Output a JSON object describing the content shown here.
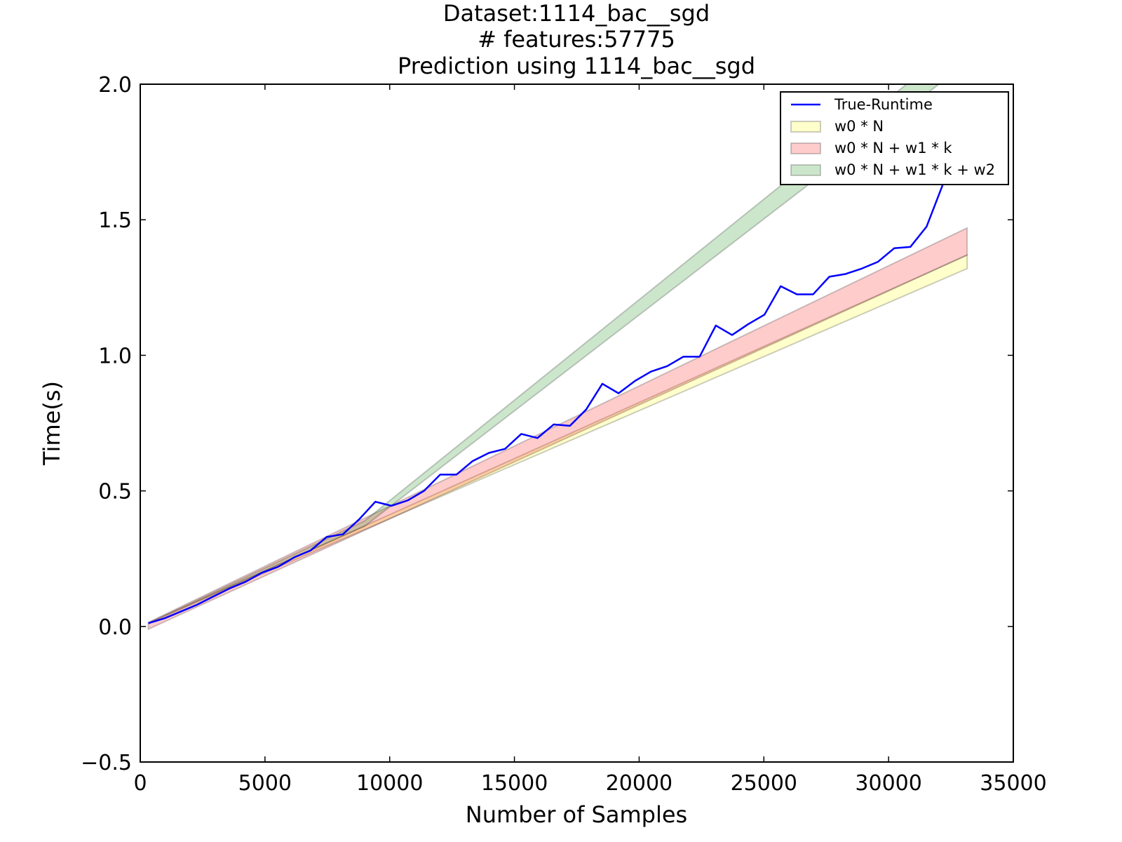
{
  "chart_data": {
    "type": "line",
    "title": [
      "Dataset:1114_bac__sgd",
      "# features:57775",
      "Prediction using 1114_bac__sgd"
    ],
    "xlabel": "Number of Samples",
    "ylabel": "Time(s)",
    "xlim": [
      0,
      35000
    ],
    "ylim": [
      -0.5,
      2.0
    ],
    "xticks": [
      0,
      5000,
      10000,
      15000,
      20000,
      25000,
      30000,
      35000
    ],
    "xtick_labels": [
      "0",
      "5000",
      "10000",
      "15000",
      "20000",
      "25000",
      "30000",
      "35000"
    ],
    "yticks": [
      -0.5,
      0.0,
      0.5,
      1.0,
      1.5,
      2.0
    ],
    "ytick_labels": [
      "−0.5",
      "0.0",
      "0.5",
      "1.0",
      "1.5",
      "2.0"
    ],
    "grid": false,
    "legend_position": "top-right",
    "series": [
      {
        "name": "True-Runtime",
        "kind": "line",
        "color": "#0000ff",
        "x": [
          325,
          975,
          1625,
          2275,
          2925,
          3575,
          4225,
          4875,
          5525,
          6175,
          6825,
          7475,
          8125,
          8775,
          9425,
          10075,
          10725,
          11375,
          12025,
          12675,
          13325,
          13975,
          14625,
          15275,
          15925,
          16575,
          17225,
          17875,
          18525,
          19175,
          19825,
          20475,
          21125,
          21775,
          22425,
          23075,
          23725,
          24375,
          25025,
          25675,
          26325,
          26975,
          27625,
          28275,
          28925,
          29575,
          30225,
          30875,
          31525,
          32175,
          32825
        ],
        "y": [
          0.012,
          0.03,
          0.055,
          0.08,
          0.11,
          0.14,
          0.165,
          0.198,
          0.22,
          0.255,
          0.28,
          0.33,
          0.34,
          0.395,
          0.46,
          0.445,
          0.465,
          0.5,
          0.56,
          0.56,
          0.61,
          0.64,
          0.655,
          0.71,
          0.695,
          0.745,
          0.74,
          0.8,
          0.895,
          0.86,
          0.905,
          0.94,
          0.96,
          0.995,
          0.995,
          1.11,
          1.075,
          1.115,
          1.15,
          1.255,
          1.225,
          1.225,
          1.29,
          1.3,
          1.32,
          1.345,
          1.395,
          1.4,
          1.475,
          1.63,
          1.85
        ]
      },
      {
        "name": "w0 * N",
        "kind": "band",
        "color": "#ffff00",
        "opacity": 0.2,
        "x": [
          325,
          33150
        ],
        "lower": [
          0.012,
          1.32
        ],
        "upper": [
          0.012,
          1.37
        ]
      },
      {
        "name": "w0 * N + w1 * k",
        "kind": "band",
        "color": "#ff0000",
        "opacity": 0.2,
        "x": [
          325,
          33150
        ],
        "lower": [
          -0.01,
          1.37
        ],
        "upper": [
          0.015,
          1.47
        ]
      },
      {
        "name": "w0 * N + w1 * k + w2",
        "kind": "band",
        "color": "#008000",
        "opacity": 0.2,
        "x": [
          325,
          9000,
          33150
        ],
        "lower": [
          0.012,
          0.37,
          2.08
        ],
        "upper": [
          0.012,
          0.39,
          2.18
        ]
      }
    ]
  }
}
